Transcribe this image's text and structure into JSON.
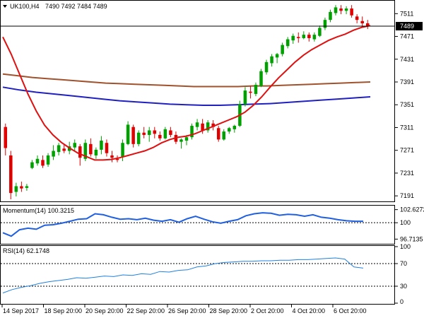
{
  "header": {
    "symbol_label": "UK100,H4",
    "ohlc": "7490 7492 7484 7489",
    "current_price": "7489"
  },
  "price_axis": {
    "ticks": [
      "7511",
      "7471",
      "7431",
      "7391",
      "7351",
      "7311",
      "7271",
      "7231",
      "7191"
    ],
    "values": [
      7511,
      7471,
      7431,
      7391,
      7351,
      7311,
      7271,
      7231,
      7191
    ],
    "current_value": 7489
  },
  "momentum_panel": {
    "title": "Momentum(14) 100.3215",
    "ticks": [
      "102.6272",
      "100",
      "96.7135"
    ],
    "values": [
      102.6272,
      100,
      96.7135
    ],
    "level": 100
  },
  "rsi_panel": {
    "title": "RSI(14) 62.1748",
    "ticks": [
      "100",
      "70",
      "30",
      "0"
    ],
    "values": [
      100,
      70,
      30,
      0
    ],
    "levels": [
      70,
      30
    ]
  },
  "time_axis": {
    "labels": [
      "14 Sep 2017",
      "18 Sep 20:00",
      "20 Sep 20:00",
      "22 Sep 20:00",
      "26 Sep 20:00",
      "28 Sep 20:00",
      "2 Oct 20:00",
      "4 Oct 20:00",
      "6 Oct 20:00"
    ]
  },
  "colors": {
    "bull": "#00a000",
    "bear": "#e00000",
    "ma_fast": "#e01010",
    "ma_mid": "#a0522d",
    "ma_slow": "#2020c0",
    "momentum": "#2060e0",
    "rsi": "#2080e0",
    "grid": "#000000"
  },
  "chart_data": {
    "type": "candlestick",
    "ylim": [
      7185,
      7530
    ],
    "candles": [
      [
        7312,
        7318,
        7262,
        7275
      ],
      [
        7262,
        7270,
        7185,
        7196
      ],
      [
        7198,
        7214,
        7190,
        7208
      ],
      [
        7208,
        7216,
        7198,
        7204
      ],
      [
        7205,
        7212,
        7200,
        7208
      ],
      [
        7240,
        7254,
        7238,
        7250
      ],
      [
        7248,
        7262,
        7244,
        7256
      ],
      [
        7254,
        7262,
        7240,
        7244
      ],
      [
        7246,
        7266,
        7242,
        7262
      ],
      [
        7260,
        7280,
        7254,
        7270
      ],
      [
        7268,
        7284,
        7262,
        7280
      ],
      [
        7274,
        7282,
        7266,
        7270
      ],
      [
        7270,
        7286,
        7264,
        7278
      ],
      [
        7276,
        7290,
        7270,
        7284
      ],
      [
        7278,
        7282,
        7244,
        7258
      ],
      [
        7256,
        7290,
        7252,
        7284
      ],
      [
        7282,
        7292,
        7260,
        7264
      ],
      [
        7262,
        7276,
        7256,
        7272
      ],
      [
        7272,
        7296,
        7264,
        7288
      ],
      [
        7284,
        7290,
        7260,
        7266
      ],
      [
        7262,
        7270,
        7250,
        7258
      ],
      [
        7256,
        7262,
        7250,
        7254
      ],
      [
        7260,
        7290,
        7252,
        7284
      ],
      [
        7282,
        7322,
        7280,
        7316
      ],
      [
        7312,
        7316,
        7276,
        7282
      ],
      [
        7282,
        7306,
        7278,
        7302
      ],
      [
        7302,
        7312,
        7292,
        7298
      ],
      [
        7298,
        7312,
        7286,
        7306
      ],
      [
        7306,
        7312,
        7292,
        7300
      ],
      [
        7298,
        7304,
        7288,
        7292
      ],
      [
        7292,
        7312,
        7290,
        7308
      ],
      [
        7306,
        7312,
        7294,
        7298
      ],
      [
        7298,
        7304,
        7282,
        7286
      ],
      [
        7286,
        7292,
        7274,
        7290
      ],
      [
        7288,
        7298,
        7280,
        7294
      ],
      [
        7294,
        7318,
        7290,
        7314
      ],
      [
        7312,
        7326,
        7306,
        7320
      ],
      [
        7318,
        7326,
        7300,
        7306
      ],
      [
        7306,
        7324,
        7302,
        7320
      ],
      [
        7318,
        7324,
        7306,
        7312
      ],
      [
        7310,
        7314,
        7286,
        7290
      ],
      [
        7290,
        7308,
        7288,
        7304
      ],
      [
        7304,
        7312,
        7300,
        7310
      ],
      [
        7308,
        7316,
        7302,
        7314
      ],
      [
        7314,
        7358,
        7312,
        7352
      ],
      [
        7352,
        7382,
        7348,
        7376
      ],
      [
        7374,
        7384,
        7362,
        7372
      ],
      [
        7370,
        7390,
        7366,
        7386
      ],
      [
        7384,
        7414,
        7382,
        7410
      ],
      [
        7408,
        7430,
        7404,
        7426
      ],
      [
        7424,
        7440,
        7418,
        7436
      ],
      [
        7434,
        7442,
        7424,
        7440
      ],
      [
        7440,
        7460,
        7436,
        7456
      ],
      [
        7454,
        7470,
        7450,
        7466
      ],
      [
        7464,
        7476,
        7458,
        7472
      ],
      [
        7470,
        7478,
        7460,
        7468
      ],
      [
        7468,
        7480,
        7466,
        7474
      ],
      [
        7474,
        7478,
        7462,
        7468
      ],
      [
        7466,
        7478,
        7462,
        7474
      ],
      [
        7472,
        7490,
        7470,
        7486
      ],
      [
        7486,
        7504,
        7482,
        7500
      ],
      [
        7500,
        7518,
        7496,
        7514
      ],
      [
        7512,
        7526,
        7508,
        7522
      ],
      [
        7520,
        7526,
        7510,
        7516
      ],
      [
        7516,
        7524,
        7510,
        7520
      ],
      [
        7520,
        7526,
        7504,
        7508
      ],
      [
        7506,
        7510,
        7494,
        7500
      ],
      [
        7498,
        7506,
        7488,
        7494
      ],
      [
        7494,
        7500,
        7484,
        7489
      ]
    ],
    "ma_fast": [
      7470,
      7440,
      7405,
      7370,
      7340,
      7315,
      7298,
      7285,
      7275,
      7266,
      7260,
      7254,
      7254,
      7255,
      7258,
      7262,
      7266,
      7270,
      7276,
      7284,
      7290,
      7294,
      7296,
      7300,
      7306,
      7312,
      7318,
      7324,
      7330,
      7338,
      7350,
      7365,
      7382,
      7398,
      7412,
      7426,
      7438,
      7448,
      7456,
      7464,
      7470,
      7475,
      7482,
      7487,
      7490
    ],
    "ma_mid": [
      7405,
      7402,
      7399,
      7397,
      7395,
      7393,
      7391,
      7389,
      7388,
      7387,
      7386,
      7385,
      7384,
      7383,
      7383,
      7383,
      7383,
      7384,
      7384,
      7385,
      7386,
      7387,
      7388,
      7389,
      7390,
      7391
    ],
    "ma_slow": [
      7382,
      7377,
      7373,
      7370,
      7367,
      7364,
      7361,
      7358,
      7356,
      7354,
      7352,
      7351,
      7350,
      7350,
      7351,
      7352,
      7353,
      7355,
      7357,
      7359,
      7361,
      7363,
      7365
    ],
    "momentum": [
      98.0,
      97.3,
      98.6,
      98.9,
      98.7,
      99.5,
      99.6,
      99.9,
      100.3,
      100.7,
      100.8,
      101.8,
      101.6,
      101.1,
      100.7,
      100.8,
      100.6,
      100.9,
      100.5,
      100.3,
      100.6,
      100.1,
      100.8,
      101.3,
      100.7,
      100.2,
      99.9,
      100.3,
      100.6,
      101.4,
      101.8,
      102.0,
      101.9,
      101.5,
      101.7,
      101.6,
      101.3,
      101.6,
      101.1,
      100.9,
      100.6,
      100.4,
      100.3,
      100.3
    ],
    "rsi": [
      18,
      24,
      28,
      31,
      35,
      38,
      40,
      42,
      45,
      44,
      46,
      48,
      47,
      50,
      49,
      52,
      51,
      56,
      55,
      58,
      59,
      64,
      66,
      70,
      72,
      73,
      74,
      74,
      75,
      75,
      76,
      76,
      77,
      77,
      78,
      79,
      80,
      78,
      64,
      62
    ]
  }
}
